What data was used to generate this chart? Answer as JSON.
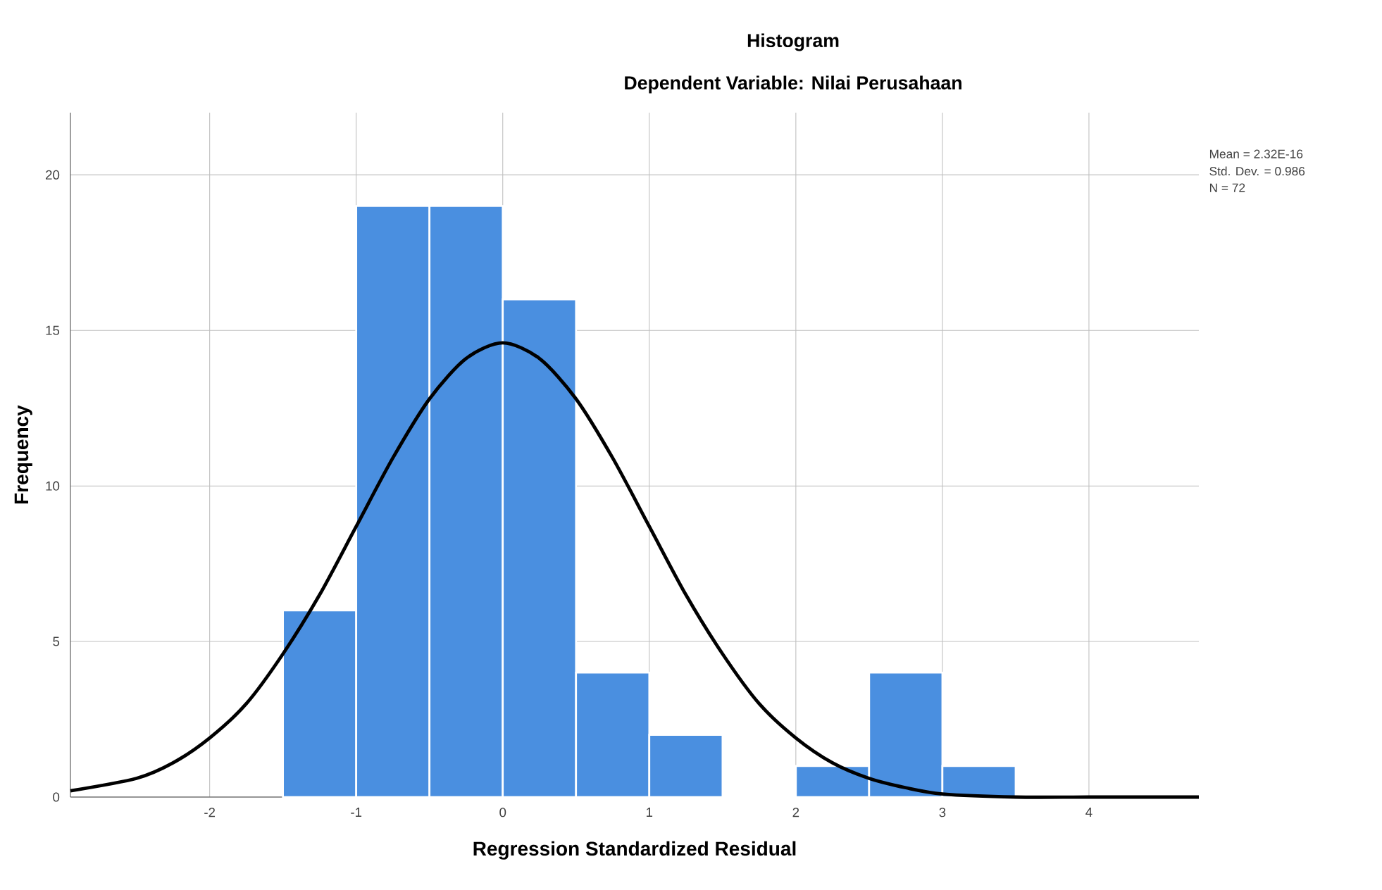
{
  "chart_data": {
    "type": "histogram",
    "title": "Histogram",
    "subtitle": "Dependent Variable: Nilai Perusahaan",
    "xlabel": "Regression Standardized Residual",
    "ylabel": "Frequency",
    "bins": [
      -1.5,
      -1,
      -0.5,
      0,
      0.5,
      1,
      1.5,
      2,
      2.5,
      3,
      3.5
    ],
    "values": [
      6,
      19,
      19,
      16,
      4,
      2,
      0,
      1,
      4,
      1
    ],
    "color": "#4a8fe0",
    "series": [
      {
        "type": "line",
        "color": "#000000",
        "x": [
          -2.95,
          -2.5,
          -2.25,
          -2,
          -1.75,
          -1.5,
          -1.25,
          -1,
          -0.75,
          -0.5,
          -0.25,
          0,
          0.25,
          0.5,
          0.75,
          1,
          1.25,
          1.5,
          1.75,
          2,
          2.25,
          2.5,
          2.75,
          3,
          3.5,
          4,
          4.75
        ],
        "values": [
          0.2,
          0.6,
          1.1,
          1.9,
          3,
          4.6,
          6.5,
          8.7,
          10.9,
          12.8,
          14.1,
          14.6,
          14.1,
          12.8,
          10.9,
          8.7,
          6.5,
          4.6,
          3,
          1.9,
          1.1,
          0.6,
          0.3,
          0.1,
          0,
          0,
          0
        ]
      }
    ],
    "xlim": [
      -2.95,
      4.75
    ],
    "ylim": [
      0,
      22
    ],
    "xticks": [
      -2,
      -1,
      0,
      1,
      2,
      3,
      4
    ],
    "yticks": [
      0,
      5,
      10,
      15,
      20
    ],
    "grid": true,
    "annotations": [
      "Mean = 2.32E-16",
      "Std. Dev. = 0.986",
      "N = 72"
    ]
  }
}
